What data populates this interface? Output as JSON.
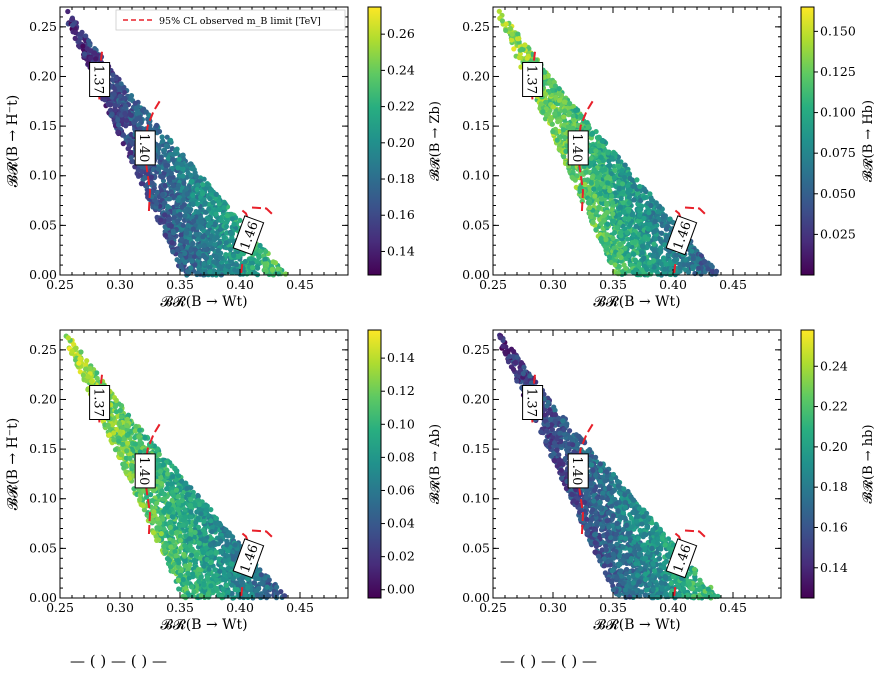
{
  "figure": {
    "legend_label": "95% CL observed m_B limit [TeV]",
    "contour_label_values": [
      "1.37",
      "1.40",
      "1.46"
    ],
    "limit_line_color": "#e8202a",
    "colormap": "viridis",
    "bottom_caption_fragments": [
      "—  (     ) — (     ) —",
      "—  (     ) — (     ) —"
    ]
  },
  "chart_data": [
    {
      "id": "zb",
      "type": "scatter",
      "xlabel": "𝓑𝓡(B → Wt)",
      "ylabel": "𝓑𝓡(B → H⁻t)",
      "colorbar_label": "𝓑𝓡(B → Zb)",
      "xlim": [
        0.25,
        0.49
      ],
      "ylim": [
        0.0,
        0.27
      ],
      "xticks": [
        "0.25",
        "0.30",
        "0.35",
        "0.40",
        "0.45"
      ],
      "yticks": [
        "0.00",
        "0.05",
        "0.10",
        "0.15",
        "0.20",
        "0.25"
      ],
      "colorbar_ticks": [
        "0.14",
        "0.16",
        "0.18",
        "0.20",
        "0.22",
        "0.24",
        "0.26"
      ],
      "color_range": [
        0.127,
        0.275
      ],
      "color_trend": "increasing_with_x",
      "show_legend": true
    },
    {
      "id": "hb_heavy",
      "type": "scatter",
      "xlabel": "𝓑𝓡(B → Wt)",
      "ylabel": "",
      "colorbar_label": "𝓑𝓡(B → Hb)",
      "xlim": [
        0.25,
        0.49
      ],
      "ylim": [
        0.0,
        0.27
      ],
      "xticks": [
        "0.25",
        "0.30",
        "0.35",
        "0.40",
        "0.45"
      ],
      "yticks": [
        "0.00",
        "0.05",
        "0.10",
        "0.15",
        "0.20",
        "0.25"
      ],
      "colorbar_ticks": [
        "0.025",
        "0.050",
        "0.075",
        "0.100",
        "0.125",
        "0.150"
      ],
      "color_range": [
        0.0,
        0.165
      ],
      "color_trend": "decreasing_with_x",
      "show_legend": false
    },
    {
      "id": "ab",
      "type": "scatter",
      "xlabel": "𝓑𝓡(B → Wt)",
      "ylabel": "𝓑𝓡(B → H⁻t)",
      "colorbar_label": "𝓑𝓡(B → Ab)",
      "xlim": [
        0.25,
        0.49
      ],
      "ylim": [
        0.0,
        0.27
      ],
      "xticks": [
        "0.25",
        "0.30",
        "0.35",
        "0.40",
        "0.45"
      ],
      "yticks": [
        "0.00",
        "0.05",
        "0.10",
        "0.15",
        "0.20",
        "0.25"
      ],
      "colorbar_ticks": [
        "0.00",
        "0.02",
        "0.04",
        "0.06",
        "0.08",
        "0.10",
        "0.12",
        "0.14"
      ],
      "color_range": [
        -0.005,
        0.157
      ],
      "color_trend": "decreasing_with_x",
      "show_legend": false
    },
    {
      "id": "hb_light",
      "type": "scatter",
      "xlabel": "𝓑𝓡(B → Wt)",
      "ylabel": "",
      "colorbar_label": "𝓑𝓡(B → hb)",
      "xlim": [
        0.25,
        0.49
      ],
      "ylim": [
        0.0,
        0.27
      ],
      "xticks": [
        "0.25",
        "0.30",
        "0.35",
        "0.40",
        "0.45"
      ],
      "yticks": [
        "0.00",
        "0.05",
        "0.10",
        "0.15",
        "0.20",
        "0.25"
      ],
      "colorbar_ticks": [
        "0.14",
        "0.16",
        "0.18",
        "0.20",
        "0.22",
        "0.24"
      ],
      "color_range": [
        0.125,
        0.258
      ],
      "color_trend": "increasing_with_x",
      "show_legend": false
    }
  ]
}
